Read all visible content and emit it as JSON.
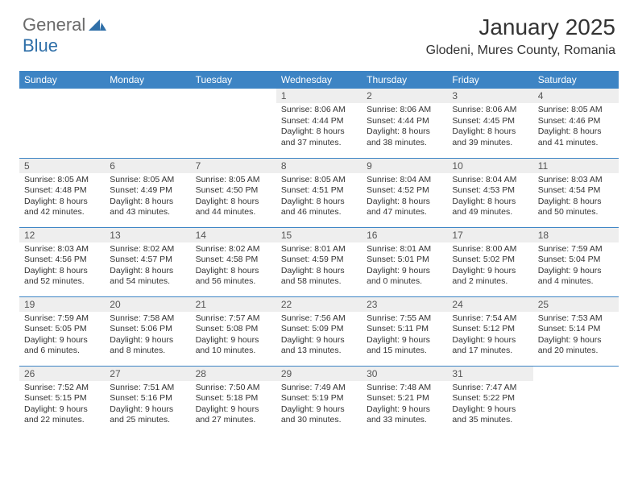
{
  "logo": {
    "general": "General",
    "blue": "Blue"
  },
  "title": "January 2025",
  "location": "Glodeni, Mures County, Romania",
  "colors": {
    "header_bg": "#3d84c4",
    "header_text": "#ffffff",
    "daynum_bg": "#eeeeee",
    "border": "#3d84c4",
    "logo_gray": "#6b6b6b",
    "logo_blue": "#2f6fa8"
  },
  "weekdays": [
    "Sunday",
    "Monday",
    "Tuesday",
    "Wednesday",
    "Thursday",
    "Friday",
    "Saturday"
  ],
  "weeks": [
    [
      null,
      null,
      null,
      {
        "n": "1",
        "sr": "Sunrise: 8:06 AM",
        "ss": "Sunset: 4:44 PM",
        "dl": "Daylight: 8 hours and 37 minutes."
      },
      {
        "n": "2",
        "sr": "Sunrise: 8:06 AM",
        "ss": "Sunset: 4:44 PM",
        "dl": "Daylight: 8 hours and 38 minutes."
      },
      {
        "n": "3",
        "sr": "Sunrise: 8:06 AM",
        "ss": "Sunset: 4:45 PM",
        "dl": "Daylight: 8 hours and 39 minutes."
      },
      {
        "n": "4",
        "sr": "Sunrise: 8:05 AM",
        "ss": "Sunset: 4:46 PM",
        "dl": "Daylight: 8 hours and 41 minutes."
      }
    ],
    [
      {
        "n": "5",
        "sr": "Sunrise: 8:05 AM",
        "ss": "Sunset: 4:48 PM",
        "dl": "Daylight: 8 hours and 42 minutes."
      },
      {
        "n": "6",
        "sr": "Sunrise: 8:05 AM",
        "ss": "Sunset: 4:49 PM",
        "dl": "Daylight: 8 hours and 43 minutes."
      },
      {
        "n": "7",
        "sr": "Sunrise: 8:05 AM",
        "ss": "Sunset: 4:50 PM",
        "dl": "Daylight: 8 hours and 44 minutes."
      },
      {
        "n": "8",
        "sr": "Sunrise: 8:05 AM",
        "ss": "Sunset: 4:51 PM",
        "dl": "Daylight: 8 hours and 46 minutes."
      },
      {
        "n": "9",
        "sr": "Sunrise: 8:04 AM",
        "ss": "Sunset: 4:52 PM",
        "dl": "Daylight: 8 hours and 47 minutes."
      },
      {
        "n": "10",
        "sr": "Sunrise: 8:04 AM",
        "ss": "Sunset: 4:53 PM",
        "dl": "Daylight: 8 hours and 49 minutes."
      },
      {
        "n": "11",
        "sr": "Sunrise: 8:03 AM",
        "ss": "Sunset: 4:54 PM",
        "dl": "Daylight: 8 hours and 50 minutes."
      }
    ],
    [
      {
        "n": "12",
        "sr": "Sunrise: 8:03 AM",
        "ss": "Sunset: 4:56 PM",
        "dl": "Daylight: 8 hours and 52 minutes."
      },
      {
        "n": "13",
        "sr": "Sunrise: 8:02 AM",
        "ss": "Sunset: 4:57 PM",
        "dl": "Daylight: 8 hours and 54 minutes."
      },
      {
        "n": "14",
        "sr": "Sunrise: 8:02 AM",
        "ss": "Sunset: 4:58 PM",
        "dl": "Daylight: 8 hours and 56 minutes."
      },
      {
        "n": "15",
        "sr": "Sunrise: 8:01 AM",
        "ss": "Sunset: 4:59 PM",
        "dl": "Daylight: 8 hours and 58 minutes."
      },
      {
        "n": "16",
        "sr": "Sunrise: 8:01 AM",
        "ss": "Sunset: 5:01 PM",
        "dl": "Daylight: 9 hours and 0 minutes."
      },
      {
        "n": "17",
        "sr": "Sunrise: 8:00 AM",
        "ss": "Sunset: 5:02 PM",
        "dl": "Daylight: 9 hours and 2 minutes."
      },
      {
        "n": "18",
        "sr": "Sunrise: 7:59 AM",
        "ss": "Sunset: 5:04 PM",
        "dl": "Daylight: 9 hours and 4 minutes."
      }
    ],
    [
      {
        "n": "19",
        "sr": "Sunrise: 7:59 AM",
        "ss": "Sunset: 5:05 PM",
        "dl": "Daylight: 9 hours and 6 minutes."
      },
      {
        "n": "20",
        "sr": "Sunrise: 7:58 AM",
        "ss": "Sunset: 5:06 PM",
        "dl": "Daylight: 9 hours and 8 minutes."
      },
      {
        "n": "21",
        "sr": "Sunrise: 7:57 AM",
        "ss": "Sunset: 5:08 PM",
        "dl": "Daylight: 9 hours and 10 minutes."
      },
      {
        "n": "22",
        "sr": "Sunrise: 7:56 AM",
        "ss": "Sunset: 5:09 PM",
        "dl": "Daylight: 9 hours and 13 minutes."
      },
      {
        "n": "23",
        "sr": "Sunrise: 7:55 AM",
        "ss": "Sunset: 5:11 PM",
        "dl": "Daylight: 9 hours and 15 minutes."
      },
      {
        "n": "24",
        "sr": "Sunrise: 7:54 AM",
        "ss": "Sunset: 5:12 PM",
        "dl": "Daylight: 9 hours and 17 minutes."
      },
      {
        "n": "25",
        "sr": "Sunrise: 7:53 AM",
        "ss": "Sunset: 5:14 PM",
        "dl": "Daylight: 9 hours and 20 minutes."
      }
    ],
    [
      {
        "n": "26",
        "sr": "Sunrise: 7:52 AM",
        "ss": "Sunset: 5:15 PM",
        "dl": "Daylight: 9 hours and 22 minutes."
      },
      {
        "n": "27",
        "sr": "Sunrise: 7:51 AM",
        "ss": "Sunset: 5:16 PM",
        "dl": "Daylight: 9 hours and 25 minutes."
      },
      {
        "n": "28",
        "sr": "Sunrise: 7:50 AM",
        "ss": "Sunset: 5:18 PM",
        "dl": "Daylight: 9 hours and 27 minutes."
      },
      {
        "n": "29",
        "sr": "Sunrise: 7:49 AM",
        "ss": "Sunset: 5:19 PM",
        "dl": "Daylight: 9 hours and 30 minutes."
      },
      {
        "n": "30",
        "sr": "Sunrise: 7:48 AM",
        "ss": "Sunset: 5:21 PM",
        "dl": "Daylight: 9 hours and 33 minutes."
      },
      {
        "n": "31",
        "sr": "Sunrise: 7:47 AM",
        "ss": "Sunset: 5:22 PM",
        "dl": "Daylight: 9 hours and 35 minutes."
      },
      null
    ]
  ]
}
